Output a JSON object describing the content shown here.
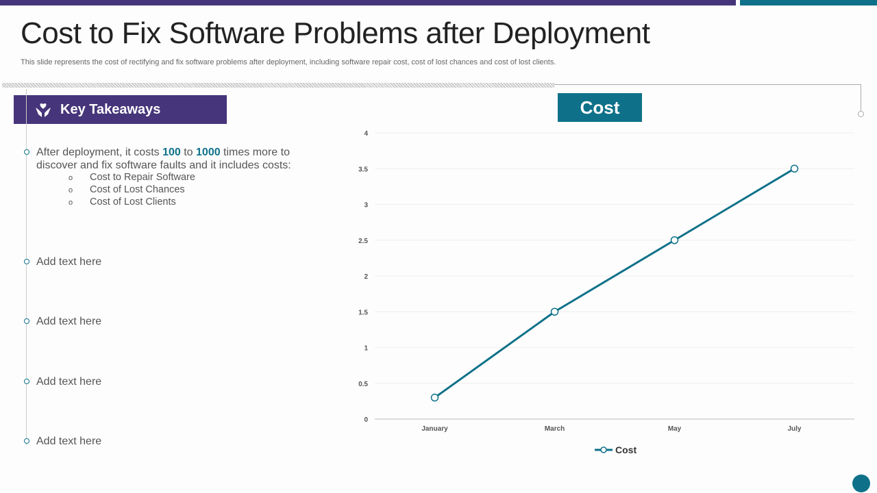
{
  "title": "Cost to Fix Software Problems after Deployment",
  "subtitle": "This slide represents the cost of rectifying and fix  software problems after deployment, including software repair cost, cost of lost chances and cost of lost clients.",
  "key_takeaways": {
    "label": "Key Takeaways",
    "icon": "helping-hand-heart-icon"
  },
  "bullets": {
    "first": {
      "pre": "After deployment,  it costs ",
      "n1": "100",
      "mid": " to ",
      "n2": "1000",
      "post": " times more to discover and fix software faults  and it includes costs:"
    },
    "subs": [
      "Cost to Repair Software",
      "Cost of Lost Chances",
      "Cost of Lost Clients"
    ],
    "sub_marker": "o",
    "others": [
      "Add text here",
      "Add text here",
      "Add text here",
      "Add text here"
    ]
  },
  "colors": {
    "purple": "#46357a",
    "teal": "#0e7189"
  },
  "chart_data": {
    "type": "line",
    "title": "Cost",
    "categories": [
      "January",
      "March",
      "May",
      "July"
    ],
    "series": [
      {
        "name": "Cost",
        "values": [
          0.3,
          1.5,
          2.5,
          3.5
        ],
        "color": "#0e7189"
      }
    ],
    "ylim": [
      0,
      4
    ],
    "yticks": [
      "0",
      "0.5",
      "1",
      "1.5",
      "2",
      "2.5",
      "3",
      "3.5",
      "4"
    ],
    "grid": true,
    "legend": "bottom"
  }
}
